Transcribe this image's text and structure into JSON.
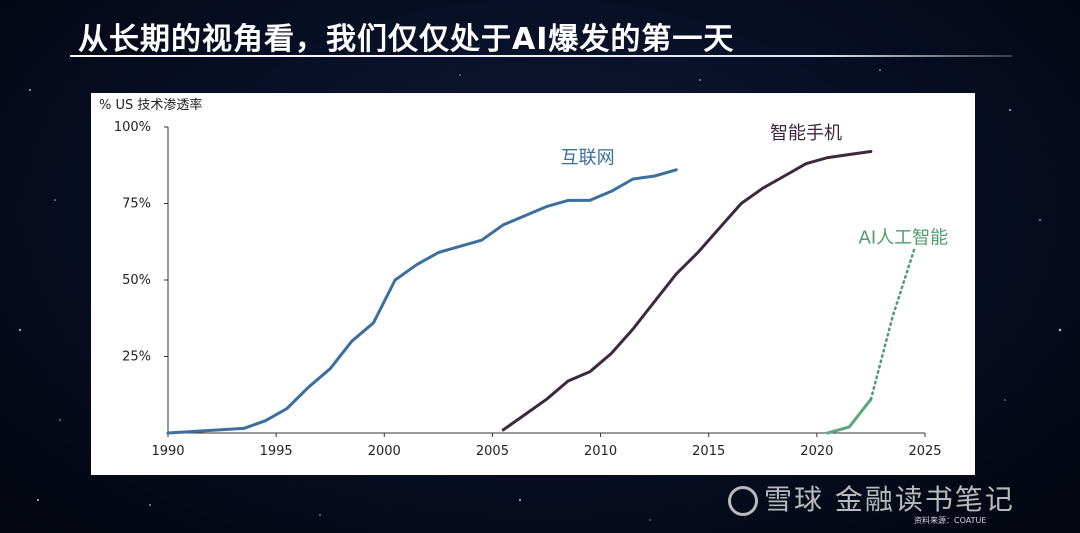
{
  "slide": {
    "title": "从长期的视角看，我们仅仅处于AI爆发的第一天",
    "source": "资料来源：COATUE",
    "watermark": "雪球 金融读书笔记"
  },
  "chart_data": {
    "type": "line",
    "title": "",
    "xlabel": "",
    "ylabel": "% US 技术渗透率",
    "xlim": [
      1990,
      2025
    ],
    "ylim": [
      0,
      100
    ],
    "x_ticks": [
      "1990",
      "1995",
      "2000",
      "2005",
      "2010",
      "2015",
      "2020",
      "2025"
    ],
    "y_ticks": [
      {
        "label": "100%",
        "value": 100
      },
      {
        "label": "75%",
        "value": 75
      },
      {
        "label": "50%",
        "value": 50
      },
      {
        "label": "25%",
        "value": 25
      }
    ],
    "grid": false,
    "legend": "inline labels",
    "series": [
      {
        "name": "互联网",
        "color": "#3c6e9e",
        "style": "solid",
        "points": [
          [
            1990,
            0
          ],
          [
            1993.5,
            1.5
          ],
          [
            1994.5,
            4
          ],
          [
            1995.5,
            8
          ],
          [
            1996.5,
            15
          ],
          [
            1997.5,
            21
          ],
          [
            1998.5,
            30
          ],
          [
            1999.5,
            36
          ],
          [
            2000.5,
            50
          ],
          [
            2001.5,
            55
          ],
          [
            2002.5,
            59
          ],
          [
            2003.5,
            61
          ],
          [
            2004.5,
            63
          ],
          [
            2005.5,
            68
          ],
          [
            2006.5,
            71
          ],
          [
            2007.5,
            74
          ],
          [
            2008.5,
            76
          ],
          [
            2009.5,
            76
          ],
          [
            2010.5,
            79
          ],
          [
            2011.5,
            83
          ],
          [
            2012.5,
            84
          ],
          [
            2013.5,
            86
          ]
        ]
      },
      {
        "name": "智能手机",
        "color": "#3e2840",
        "style": "solid",
        "points": [
          [
            2005.5,
            1
          ],
          [
            2006.5,
            6
          ],
          [
            2007.5,
            11
          ],
          [
            2008.5,
            17
          ],
          [
            2009.5,
            20
          ],
          [
            2010.5,
            26
          ],
          [
            2011.5,
            34
          ],
          [
            2012.5,
            43
          ],
          [
            2013.5,
            52
          ],
          [
            2014.5,
            59
          ],
          [
            2015.5,
            67
          ],
          [
            2016.5,
            75
          ],
          [
            2017.5,
            80
          ],
          [
            2018.5,
            84
          ],
          [
            2019.5,
            88
          ],
          [
            2020.5,
            90
          ],
          [
            2021.5,
            91
          ],
          [
            2022.5,
            92
          ]
        ]
      },
      {
        "name": "AI人工智能",
        "color": "#5aa880",
        "style": "solid",
        "points": [
          [
            2020.5,
            0
          ],
          [
            2021.5,
            2
          ],
          [
            2022.5,
            11
          ]
        ]
      },
      {
        "name": "",
        "color": "#4f9b72",
        "style": "dotted",
        "points": [
          [
            2022.5,
            11
          ],
          [
            2023.5,
            38
          ],
          [
            2024.5,
            60
          ]
        ]
      }
    ],
    "labels": [
      {
        "text": "互联网",
        "x": 2009.4,
        "y": 88,
        "color": "#3c6e9e"
      },
      {
        "text": "智能手机",
        "x": 2019.5,
        "y": 96,
        "color": "#3e2840"
      },
      {
        "text": "AI人工智能",
        "x": 2024.0,
        "y": 62,
        "color": "#4f9b72"
      }
    ]
  }
}
